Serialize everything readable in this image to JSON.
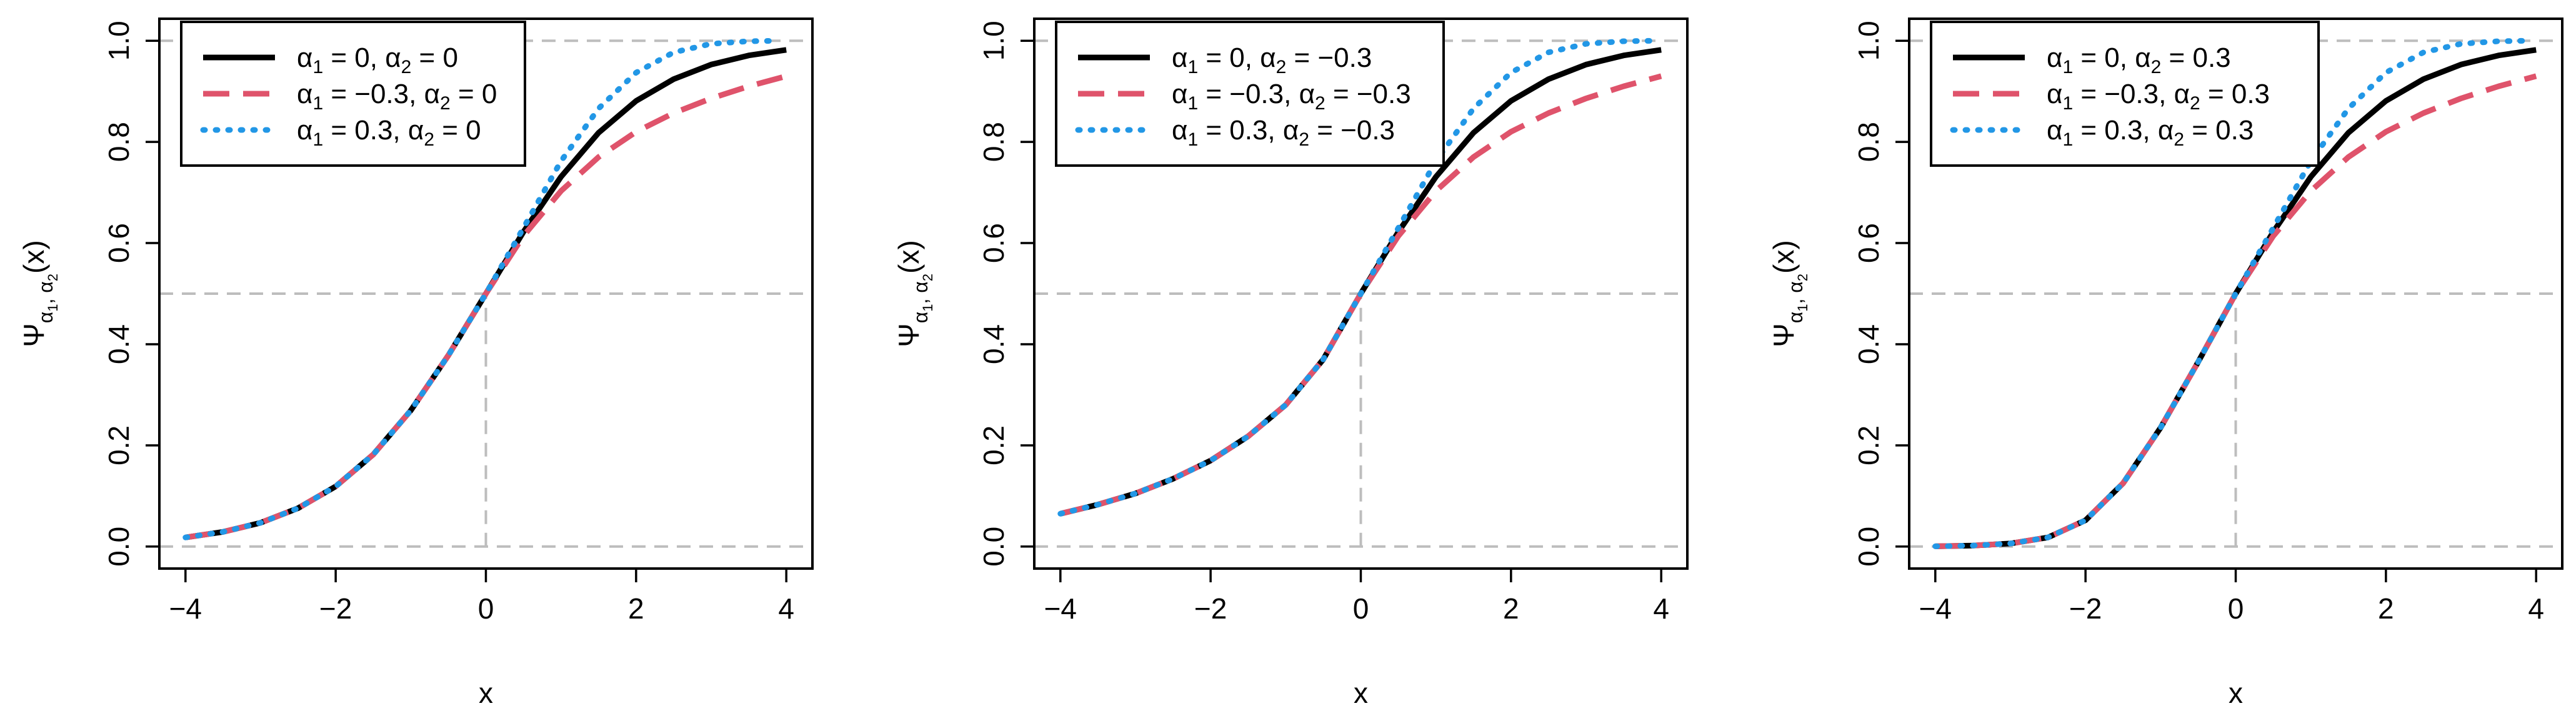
{
  "chart_data": [
    {
      "type": "line",
      "xlabel": "x",
      "ylabel": "Ψ_{α1, α2}(x)",
      "ylabel_parts": {
        "main": "Ψ",
        "sub1": "α",
        "sub1i": "1",
        "sep": ", ",
        "sub2": "α",
        "sub2i": "2",
        "arg": "(x)"
      },
      "xlim": [
        -4,
        4
      ],
      "ylim": [
        0,
        1
      ],
      "xticks": [
        "-4",
        "-2",
        "0",
        "2",
        "4"
      ],
      "yticks": [
        "0.0",
        "0.2",
        "0.4",
        "0.6",
        "0.8",
        "1.0"
      ],
      "reference_lines": {
        "horizontal": [
          0,
          0.5,
          1.0
        ],
        "vertical_at_x": 0,
        "vertical_to_y": 0.5
      },
      "legend_position": "top-left",
      "series": [
        {
          "name": "α1 = 0, α2 = 0",
          "label": {
            "a1": "0",
            "a2": "0"
          },
          "color": "#000000",
          "style": "solid",
          "x": [
            -4,
            -3.5,
            -3,
            -2.5,
            -2,
            -1.5,
            -1,
            -0.5,
            0,
            0.5,
            1,
            1.5,
            2,
            2.5,
            3,
            3.5,
            4
          ],
          "values": [
            0.018,
            0.029,
            0.047,
            0.076,
            0.119,
            0.182,
            0.269,
            0.378,
            0.5,
            0.622,
            0.731,
            0.818,
            0.881,
            0.924,
            0.953,
            0.971,
            0.982
          ]
        },
        {
          "name": "α1 = -0.3, α2 = 0",
          "label": {
            "a1": "−0.3",
            "a2": "0"
          },
          "color": "#df536b",
          "style": "dashed",
          "x": [
            -4,
            -3.5,
            -3,
            -2.5,
            -2,
            -1.5,
            -1,
            -0.5,
            0,
            0.5,
            1,
            1.5,
            2,
            2.5,
            3,
            3.5,
            4
          ],
          "values": [
            0.018,
            0.029,
            0.047,
            0.076,
            0.119,
            0.182,
            0.269,
            0.378,
            0.5,
            0.614,
            0.703,
            0.77,
            0.82,
            0.857,
            0.886,
            0.91,
            0.93
          ]
        },
        {
          "name": "α1 = 0.3, α2 = 0",
          "label": {
            "a1": "0.3",
            "a2": "0"
          },
          "color": "#2297e6",
          "style": "dotted",
          "x": [
            -4,
            -3.5,
            -3,
            -2.5,
            -2,
            -1.5,
            -1,
            -0.5,
            0,
            0.5,
            1,
            1.5,
            2,
            2.5,
            3,
            3.5,
            3.9
          ],
          "values": [
            0.018,
            0.029,
            0.047,
            0.076,
            0.119,
            0.182,
            0.269,
            0.378,
            0.5,
            0.63,
            0.762,
            0.866,
            0.937,
            0.977,
            0.994,
            0.999,
            1.0
          ]
        }
      ]
    },
    {
      "type": "line",
      "xlabel": "x",
      "ylabel": "Ψ_{α1, α2}(x)",
      "ylabel_parts": {
        "main": "Ψ",
        "sub1": "α",
        "sub1i": "1",
        "sep": ", ",
        "sub2": "α",
        "sub2i": "2",
        "arg": "(x)"
      },
      "xlim": [
        -4,
        4
      ],
      "ylim": [
        0,
        1
      ],
      "xticks": [
        "-4",
        "-2",
        "0",
        "2",
        "4"
      ],
      "yticks": [
        "0.0",
        "0.2",
        "0.4",
        "0.6",
        "0.8",
        "1.0"
      ],
      "reference_lines": {
        "horizontal": [
          0,
          0.5,
          1.0
        ],
        "vertical_at_x": 0,
        "vertical_to_y": 0.5
      },
      "legend_position": "top-left",
      "series": [
        {
          "name": "α1 = 0, α2 = -0.3",
          "label": {
            "a1": "0",
            "a2": "−0.3"
          },
          "color": "#000000",
          "style": "solid",
          "x": [
            -4,
            -3.5,
            -3,
            -2.5,
            -2,
            -1.5,
            -1,
            -0.5,
            0,
            0.5,
            1,
            1.5,
            2,
            2.5,
            3,
            3.5,
            4
          ],
          "values": [
            0.065,
            0.083,
            0.105,
            0.134,
            0.17,
            0.218,
            0.28,
            0.37,
            0.5,
            0.622,
            0.731,
            0.818,
            0.881,
            0.924,
            0.953,
            0.971,
            0.982
          ]
        },
        {
          "name": "α1 = -0.3, α2 = -0.3",
          "label": {
            "a1": "−0.3",
            "a2": "−0.3"
          },
          "color": "#df536b",
          "style": "dashed",
          "x": [
            -4,
            -3.5,
            -3,
            -2.5,
            -2,
            -1.5,
            -1,
            -0.5,
            0,
            0.5,
            1,
            1.5,
            2,
            2.5,
            3,
            3.5,
            4
          ],
          "values": [
            0.065,
            0.083,
            0.105,
            0.134,
            0.17,
            0.218,
            0.28,
            0.37,
            0.5,
            0.614,
            0.703,
            0.77,
            0.82,
            0.857,
            0.886,
            0.91,
            0.93
          ]
        },
        {
          "name": "α1 = 0.3, α2 = -0.3",
          "label": {
            "a1": "0.3",
            "a2": "−0.3"
          },
          "color": "#2297e6",
          "style": "dotted",
          "x": [
            -4,
            -3.5,
            -3,
            -2.5,
            -2,
            -1.5,
            -1,
            -0.5,
            0,
            0.5,
            1,
            1.5,
            2,
            2.5,
            3,
            3.5,
            3.9
          ],
          "values": [
            0.065,
            0.083,
            0.105,
            0.134,
            0.17,
            0.218,
            0.28,
            0.37,
            0.5,
            0.63,
            0.762,
            0.866,
            0.937,
            0.977,
            0.994,
            0.999,
            1.0
          ]
        }
      ]
    },
    {
      "type": "line",
      "xlabel": "x",
      "ylabel": "Ψ_{α1, α2}(x)",
      "ylabel_parts": {
        "main": "Ψ",
        "sub1": "α",
        "sub1i": "1",
        "sep": ", ",
        "sub2": "α",
        "sub2i": "2",
        "arg": "(x)"
      },
      "xlim": [
        -4,
        4
      ],
      "ylim": [
        0,
        1
      ],
      "xticks": [
        "-4",
        "-2",
        "0",
        "2",
        "4"
      ],
      "yticks": [
        "0.0",
        "0.2",
        "0.4",
        "0.6",
        "0.8",
        "1.0"
      ],
      "reference_lines": {
        "horizontal": [
          0,
          0.5,
          1.0
        ],
        "vertical_at_x": 0,
        "vertical_to_y": 0.5
      },
      "legend_position": "top-left",
      "series": [
        {
          "name": "α1 = 0, α2 = 0.3",
          "label": {
            "a1": "0",
            "a2": "0.3"
          },
          "color": "#000000",
          "style": "solid",
          "x": [
            -4,
            -3.5,
            -3,
            -2.5,
            -2,
            -1.5,
            -1,
            -0.5,
            0,
            0.5,
            1,
            1.5,
            2,
            2.5,
            3,
            3.5,
            4
          ],
          "values": [
            0.0005,
            0.002,
            0.006,
            0.018,
            0.052,
            0.125,
            0.235,
            0.365,
            0.5,
            0.622,
            0.731,
            0.818,
            0.881,
            0.924,
            0.953,
            0.971,
            0.982
          ]
        },
        {
          "name": "α1 = -0.3, α2 = 0.3",
          "label": {
            "a1": "−0.3",
            "a2": "0.3"
          },
          "color": "#df536b",
          "style": "dashed",
          "x": [
            -4,
            -3.5,
            -3,
            -2.5,
            -2,
            -1.5,
            -1,
            -0.5,
            0,
            0.5,
            1,
            1.5,
            2,
            2.5,
            3,
            3.5,
            4
          ],
          "values": [
            0.0005,
            0.002,
            0.006,
            0.018,
            0.052,
            0.125,
            0.235,
            0.365,
            0.5,
            0.614,
            0.703,
            0.77,
            0.82,
            0.857,
            0.886,
            0.91,
            0.93
          ]
        },
        {
          "name": "α1 = 0.3, α2 = 0.3",
          "label": {
            "a1": "0.3",
            "a2": "0.3"
          },
          "color": "#2297e6",
          "style": "dotted",
          "x": [
            -4,
            -3.5,
            -3,
            -2.5,
            -2,
            -1.5,
            -1,
            -0.5,
            0,
            0.5,
            1,
            1.5,
            2,
            2.5,
            3,
            3.5,
            3.9
          ],
          "values": [
            0.0005,
            0.002,
            0.006,
            0.018,
            0.052,
            0.125,
            0.235,
            0.365,
            0.5,
            0.63,
            0.762,
            0.866,
            0.937,
            0.977,
            0.994,
            0.999,
            1.0
          ]
        }
      ]
    }
  ]
}
